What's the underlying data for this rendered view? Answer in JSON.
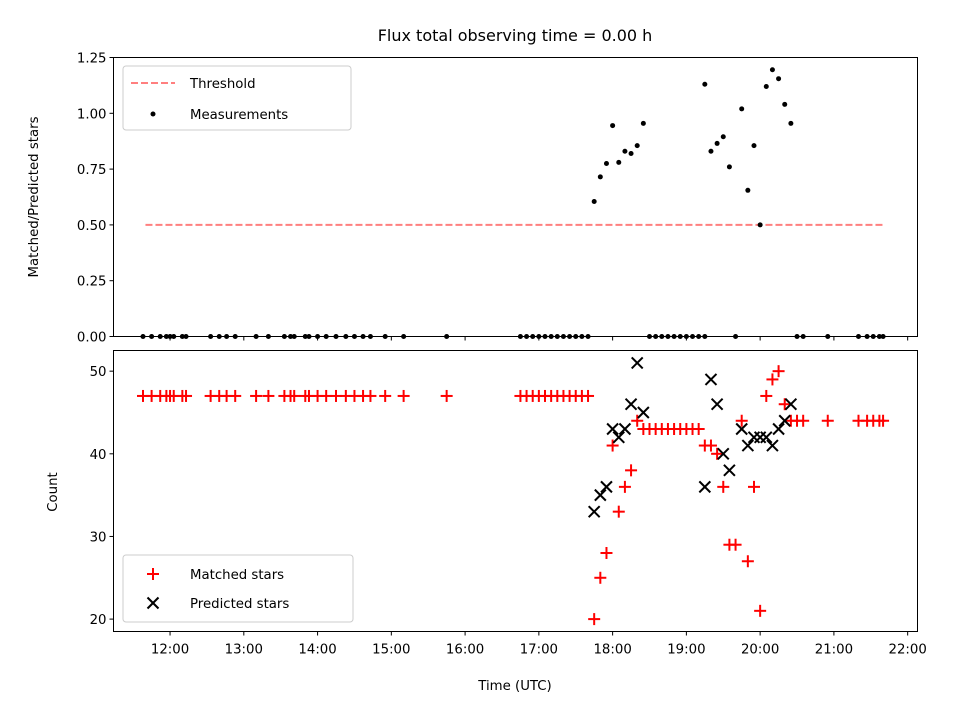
{
  "chart_data": [
    {
      "type": "scatter",
      "title": "Flux total observing time = 0.00 h",
      "xlabel": "",
      "ylabel": "Matched/Predicted stars",
      "xlim": [
        "11:14",
        "22:08"
      ],
      "ylim": [
        0,
        1.25
      ],
      "yticks": [
        "0.00",
        "0.25",
        "0.50",
        "0.75",
        "1.00",
        "1.25"
      ],
      "legend": {
        "placement": "top-left",
        "entries": [
          "Threshold",
          "Measurements"
        ]
      },
      "series": [
        {
          "name": "Threshold",
          "kind": "line",
          "style": "dashed",
          "color": "#ff7f7f",
          "points": [
            [
              "11:40",
              0.5
            ],
            [
              "21:40",
              0.5
            ]
          ]
        },
        {
          "name": "Measurements",
          "kind": "points",
          "color": "#000000",
          "points": [
            [
              "11:38",
              0
            ],
            [
              "11:45",
              0
            ],
            [
              "11:52",
              0
            ],
            [
              "11:57",
              0
            ],
            [
              "12:00",
              0
            ],
            [
              "12:03",
              0
            ],
            [
              "12:10",
              0
            ],
            [
              "12:13",
              0
            ],
            [
              "12:33",
              0
            ],
            [
              "12:40",
              0
            ],
            [
              "12:46",
              0
            ],
            [
              "12:53",
              0
            ],
            [
              "13:10",
              0
            ],
            [
              "13:20",
              0
            ],
            [
              "13:33",
              0
            ],
            [
              "13:38",
              0
            ],
            [
              "13:41",
              0
            ],
            [
              "13:50",
              0
            ],
            [
              "13:53",
              0
            ],
            [
              "14:00",
              0
            ],
            [
              "14:07",
              0
            ],
            [
              "14:15",
              0
            ],
            [
              "14:23",
              0
            ],
            [
              "14:30",
              0
            ],
            [
              "14:37",
              0
            ],
            [
              "14:43",
              0
            ],
            [
              "14:55",
              0
            ],
            [
              "15:10",
              0
            ],
            [
              "15:45",
              0
            ],
            [
              "16:45",
              0
            ],
            [
              "16:50",
              0
            ],
            [
              "16:55",
              0
            ],
            [
              "17:00",
              0
            ],
            [
              "17:05",
              0
            ],
            [
              "17:10",
              0
            ],
            [
              "17:15",
              0
            ],
            [
              "17:20",
              0
            ],
            [
              "17:25",
              0
            ],
            [
              "17:30",
              0
            ],
            [
              "17:35",
              0
            ],
            [
              "17:40",
              0
            ],
            [
              "18:30",
              0
            ],
            [
              "18:35",
              0
            ],
            [
              "18:40",
              0
            ],
            [
              "18:45",
              0
            ],
            [
              "18:50",
              0
            ],
            [
              "18:55",
              0
            ],
            [
              "19:00",
              0
            ],
            [
              "19:05",
              0
            ],
            [
              "19:10",
              0
            ],
            [
              "19:15",
              0
            ],
            [
              "19:40",
              0
            ],
            [
              "20:30",
              0
            ],
            [
              "20:35",
              0
            ],
            [
              "20:55",
              0
            ],
            [
              "21:20",
              0
            ],
            [
              "21:27",
              0
            ],
            [
              "21:32",
              0
            ],
            [
              "21:37",
              0
            ],
            [
              "21:40",
              0
            ],
            [
              "17:45",
              0.605
            ],
            [
              "17:50",
              0.715
            ],
            [
              "17:55",
              0.775
            ],
            [
              "18:00",
              0.945
            ],
            [
              "18:05",
              0.78
            ],
            [
              "18:10",
              0.83
            ],
            [
              "18:15",
              0.82
            ],
            [
              "18:20",
              0.855
            ],
            [
              "18:25",
              0.955
            ],
            [
              "19:15",
              1.13
            ],
            [
              "19:20",
              0.83
            ],
            [
              "19:25",
              0.865
            ],
            [
              "19:30",
              0.895
            ],
            [
              "19:35",
              0.76
            ],
            [
              "19:45",
              1.02
            ],
            [
              "19:50",
              0.655
            ],
            [
              "19:55",
              0.855
            ],
            [
              "20:00",
              0.5
            ],
            [
              "20:05",
              1.12
            ],
            [
              "20:10",
              1.195
            ],
            [
              "20:15",
              1.155
            ],
            [
              "20:20",
              1.04
            ],
            [
              "20:25",
              0.955
            ]
          ]
        }
      ]
    },
    {
      "type": "scatter",
      "title": "",
      "xlabel": "Time (UTC)",
      "ylabel": "Count",
      "xlim": [
        "11:14",
        "22:08"
      ],
      "ylim": [
        18.5,
        52.5
      ],
      "xticks": [
        "12:00",
        "13:00",
        "14:00",
        "15:00",
        "16:00",
        "17:00",
        "18:00",
        "19:00",
        "20:00",
        "21:00",
        "22:00"
      ],
      "yticks": [
        "20",
        "30",
        "40",
        "50"
      ],
      "legend": {
        "placement": "bottom-left",
        "entries": [
          "Matched stars",
          "Predicted stars"
        ]
      },
      "series": [
        {
          "name": "Matched stars",
          "marker": "+",
          "color": "#ff0000",
          "points": [
            [
              "11:38",
              47
            ],
            [
              "11:45",
              47
            ],
            [
              "11:52",
              47
            ],
            [
              "11:57",
              47
            ],
            [
              "12:00",
              47
            ],
            [
              "12:03",
              47
            ],
            [
              "12:10",
              47
            ],
            [
              "12:13",
              47
            ],
            [
              "12:33",
              47
            ],
            [
              "12:40",
              47
            ],
            [
              "12:46",
              47
            ],
            [
              "12:53",
              47
            ],
            [
              "13:10",
              47
            ],
            [
              "13:20",
              47
            ],
            [
              "13:33",
              47
            ],
            [
              "13:38",
              47
            ],
            [
              "13:41",
              47
            ],
            [
              "13:50",
              47
            ],
            [
              "13:53",
              47
            ],
            [
              "14:00",
              47
            ],
            [
              "14:07",
              47
            ],
            [
              "14:15",
              47
            ],
            [
              "14:23",
              47
            ],
            [
              "14:30",
              47
            ],
            [
              "14:37",
              47
            ],
            [
              "14:43",
              47
            ],
            [
              "14:55",
              47
            ],
            [
              "15:10",
              47
            ],
            [
              "15:45",
              47
            ],
            [
              "16:45",
              47
            ],
            [
              "16:50",
              47
            ],
            [
              "16:55",
              47
            ],
            [
              "17:00",
              47
            ],
            [
              "17:05",
              47
            ],
            [
              "17:10",
              47
            ],
            [
              "17:15",
              47
            ],
            [
              "17:20",
              47
            ],
            [
              "17:25",
              47
            ],
            [
              "17:30",
              47
            ],
            [
              "17:35",
              47
            ],
            [
              "17:40",
              47
            ],
            [
              "17:45",
              20
            ],
            [
              "17:50",
              25
            ],
            [
              "17:55",
              28
            ],
            [
              "18:00",
              41
            ],
            [
              "18:05",
              33
            ],
            [
              "18:10",
              36
            ],
            [
              "18:15",
              38
            ],
            [
              "18:20",
              44
            ],
            [
              "18:25",
              43
            ],
            [
              "18:30",
              43
            ],
            [
              "18:35",
              43
            ],
            [
              "18:40",
              43
            ],
            [
              "18:45",
              43
            ],
            [
              "18:50",
              43
            ],
            [
              "18:55",
              43
            ],
            [
              "19:00",
              43
            ],
            [
              "19:05",
              43
            ],
            [
              "19:10",
              43
            ],
            [
              "19:15",
              41
            ],
            [
              "19:20",
              41
            ],
            [
              "19:25",
              40
            ],
            [
              "19:30",
              36
            ],
            [
              "19:35",
              29
            ],
            [
              "19:40",
              29
            ],
            [
              "19:45",
              44
            ],
            [
              "19:50",
              27
            ],
            [
              "19:55",
              36
            ],
            [
              "20:00",
              21
            ],
            [
              "20:05",
              47
            ],
            [
              "20:10",
              49
            ],
            [
              "20:15",
              50
            ],
            [
              "20:20",
              46
            ],
            [
              "20:25",
              44
            ],
            [
              "20:30",
              44
            ],
            [
              "20:35",
              44
            ],
            [
              "20:55",
              44
            ],
            [
              "21:20",
              44
            ],
            [
              "21:27",
              44
            ],
            [
              "21:32",
              44
            ],
            [
              "21:37",
              44
            ],
            [
              "21:40",
              44
            ]
          ]
        },
        {
          "name": "Predicted stars",
          "marker": "x",
          "color": "#000000",
          "points": [
            [
              "17:45",
              33
            ],
            [
              "17:50",
              35
            ],
            [
              "17:55",
              36
            ],
            [
              "18:00",
              43
            ],
            [
              "18:05",
              42
            ],
            [
              "18:10",
              43
            ],
            [
              "18:15",
              46
            ],
            [
              "18:20",
              51
            ],
            [
              "18:25",
              45
            ],
            [
              "19:15",
              36
            ],
            [
              "19:20",
              49
            ],
            [
              "19:25",
              46
            ],
            [
              "19:30",
              40
            ],
            [
              "19:35",
              38
            ],
            [
              "19:45",
              43
            ],
            [
              "19:50",
              41
            ],
            [
              "19:55",
              42
            ],
            [
              "20:00",
              42
            ],
            [
              "20:05",
              42
            ],
            [
              "20:10",
              41
            ],
            [
              "20:15",
              43
            ],
            [
              "20:20",
              44
            ],
            [
              "20:25",
              46
            ]
          ]
        }
      ]
    }
  ]
}
